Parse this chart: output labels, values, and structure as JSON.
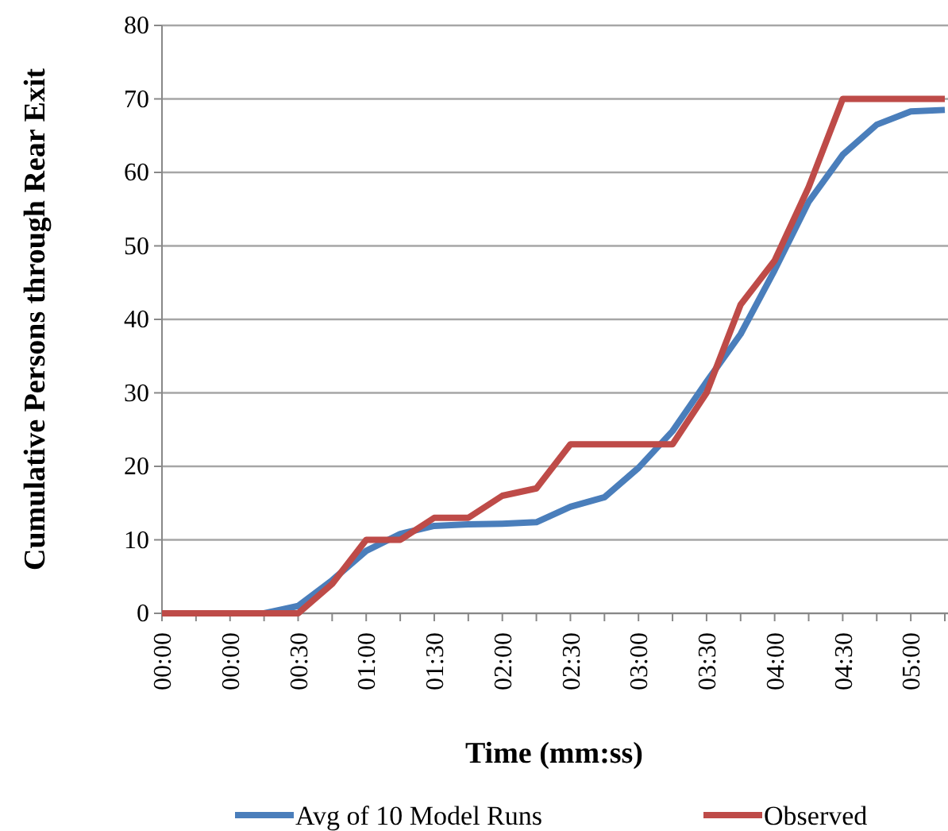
{
  "chart_data": {
    "type": "line",
    "xlabel": "Time (mm:ss)",
    "ylabel": "Cumulative Persons through Rear Exit",
    "categories": [
      "00:00",
      null,
      "00:00",
      null,
      "00:30",
      null,
      "01:00",
      null,
      "01:30",
      null,
      "02:00",
      null,
      "02:30",
      null,
      "03:00",
      null,
      "03:30",
      null,
      "04:00",
      null,
      "04:30",
      null,
      "05:00",
      null
    ],
    "series": [
      {
        "name": "Avg of 10 Model Runs",
        "color": "#4a7ebb",
        "values": [
          null,
          null,
          0,
          0,
          1,
          4.5,
          8.5,
          10.8,
          11.9,
          12.1,
          12.2,
          12.4,
          14.5,
          15.8,
          19.8,
          24.8,
          31.5,
          38,
          46.7,
          56,
          62.4,
          66.5,
          68.3,
          68.5
        ]
      },
      {
        "name": "Observed",
        "color": "#be4b48",
        "values": [
          0,
          0,
          0,
          0,
          0,
          4,
          10,
          10,
          13,
          13,
          16,
          17,
          23,
          23,
          23,
          23,
          30,
          42,
          48,
          58,
          70,
          70,
          70,
          70
        ]
      }
    ],
    "ylim": [
      0,
      80
    ],
    "yticks": [
      0,
      10,
      20,
      30,
      40,
      50,
      60,
      70,
      80
    ],
    "grid": "y",
    "legend": "bottom",
    "marker": "none",
    "line_style": "solid"
  }
}
